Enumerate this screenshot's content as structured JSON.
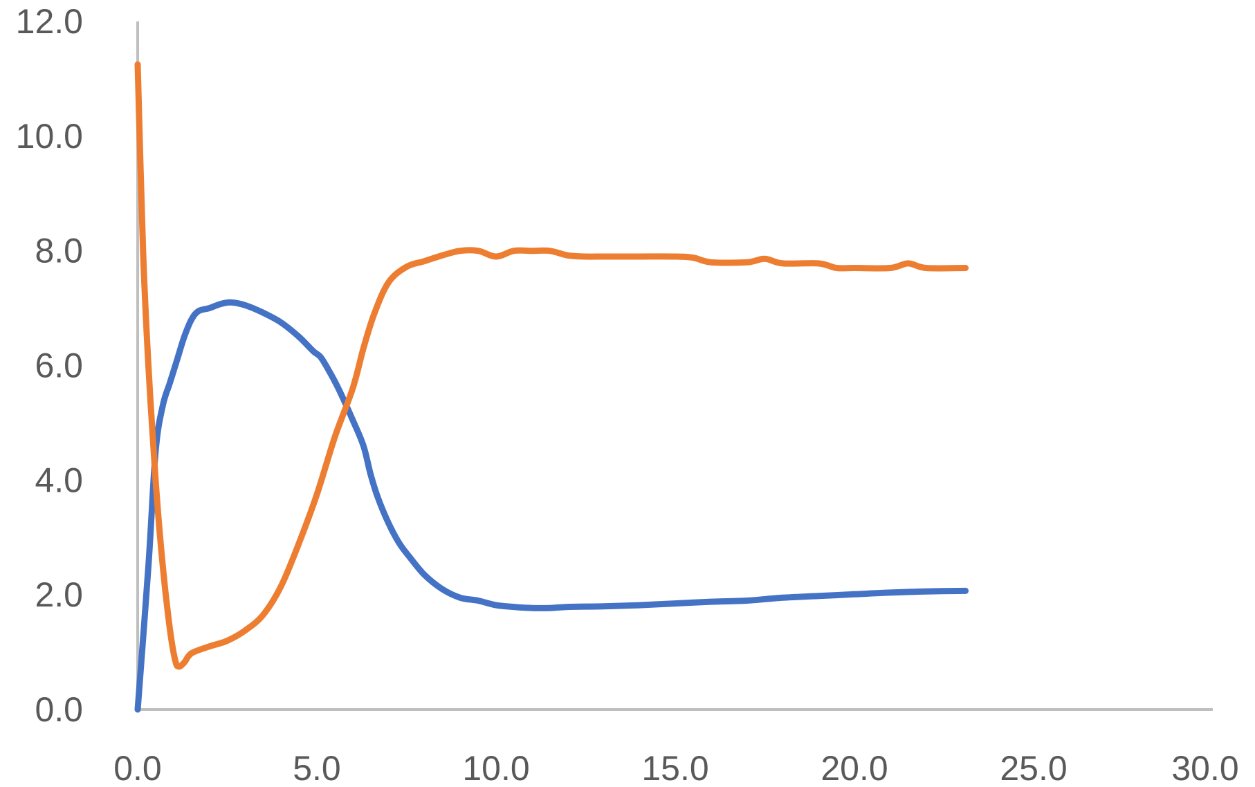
{
  "chart_data": {
    "type": "line",
    "title": "",
    "xlabel": "",
    "ylabel": "",
    "xlim": [
      0,
      30
    ],
    "ylim": [
      0,
      12
    ],
    "x_ticks": [
      "0.0",
      "5.0",
      "10.0",
      "15.0",
      "20.0",
      "25.0",
      "30.0"
    ],
    "y_ticks": [
      "0.0",
      "2.0",
      "4.0",
      "6.0",
      "8.0",
      "10.0",
      "12.0"
    ],
    "grid": false,
    "legend": "none",
    "series": [
      {
        "color": "#4472C4",
        "points": [
          [
            0.0,
            0.0
          ],
          [
            0.3,
            2.5
          ],
          [
            0.5,
            4.5
          ],
          [
            0.7,
            5.3
          ],
          [
            0.9,
            5.7
          ],
          [
            1.1,
            6.1
          ],
          [
            1.3,
            6.5
          ],
          [
            1.5,
            6.8
          ],
          [
            1.7,
            6.95
          ],
          [
            2.0,
            7.0
          ],
          [
            2.3,
            7.07
          ],
          [
            2.6,
            7.1
          ],
          [
            3.0,
            7.05
          ],
          [
            3.5,
            6.92
          ],
          [
            4.0,
            6.75
          ],
          [
            4.5,
            6.5
          ],
          [
            4.9,
            6.25
          ],
          [
            5.1,
            6.15
          ],
          [
            5.3,
            5.95
          ],
          [
            5.6,
            5.6
          ],
          [
            6.0,
            5.05
          ],
          [
            6.3,
            4.6
          ],
          [
            6.5,
            4.1
          ],
          [
            6.7,
            3.7
          ],
          [
            7.0,
            3.25
          ],
          [
            7.3,
            2.9
          ],
          [
            7.6,
            2.65
          ],
          [
            8.0,
            2.35
          ],
          [
            8.5,
            2.1
          ],
          [
            9.0,
            1.95
          ],
          [
            9.5,
            1.9
          ],
          [
            10.0,
            1.82
          ],
          [
            10.5,
            1.79
          ],
          [
            11.0,
            1.77
          ],
          [
            11.5,
            1.77
          ],
          [
            12.0,
            1.79
          ],
          [
            13.0,
            1.8
          ],
          [
            14.0,
            1.82
          ],
          [
            15.0,
            1.85
          ],
          [
            16.0,
            1.88
          ],
          [
            17.0,
            1.9
          ],
          [
            18.0,
            1.95
          ],
          [
            19.0,
            1.98
          ],
          [
            20.0,
            2.01
          ],
          [
            21.0,
            2.04
          ],
          [
            22.0,
            2.06
          ],
          [
            23.1,
            2.07
          ]
        ]
      },
      {
        "color": "#ED7D31",
        "points": [
          [
            0.0,
            11.25
          ],
          [
            0.15,
            8.0
          ],
          [
            0.3,
            6.0
          ],
          [
            0.5,
            4.0
          ],
          [
            0.7,
            2.5
          ],
          [
            0.9,
            1.4
          ],
          [
            1.05,
            0.85
          ],
          [
            1.15,
            0.75
          ],
          [
            1.3,
            0.82
          ],
          [
            1.5,
            0.98
          ],
          [
            2.0,
            1.1
          ],
          [
            2.5,
            1.2
          ],
          [
            3.0,
            1.38
          ],
          [
            3.5,
            1.65
          ],
          [
            4.0,
            2.15
          ],
          [
            4.5,
            2.9
          ],
          [
            5.0,
            3.75
          ],
          [
            5.5,
            4.75
          ],
          [
            6.0,
            5.6
          ],
          [
            6.3,
            6.3
          ],
          [
            6.6,
            6.9
          ],
          [
            7.0,
            7.45
          ],
          [
            7.5,
            7.72
          ],
          [
            8.0,
            7.82
          ],
          [
            8.5,
            7.92
          ],
          [
            9.0,
            8.0
          ],
          [
            9.5,
            8.0
          ],
          [
            10.0,
            7.9
          ],
          [
            10.5,
            8.0
          ],
          [
            11.0,
            8.0
          ],
          [
            11.5,
            8.0
          ],
          [
            12.0,
            7.92
          ],
          [
            12.5,
            7.9
          ],
          [
            13.0,
            7.9
          ],
          [
            14.0,
            7.9
          ],
          [
            15.0,
            7.9
          ],
          [
            15.5,
            7.88
          ],
          [
            16.0,
            7.8
          ],
          [
            17.0,
            7.8
          ],
          [
            17.5,
            7.86
          ],
          [
            18.0,
            7.78
          ],
          [
            19.0,
            7.78
          ],
          [
            19.5,
            7.7
          ],
          [
            20.0,
            7.7
          ],
          [
            21.0,
            7.7
          ],
          [
            21.5,
            7.78
          ],
          [
            22.0,
            7.7
          ],
          [
            23.1,
            7.7
          ]
        ]
      }
    ]
  }
}
